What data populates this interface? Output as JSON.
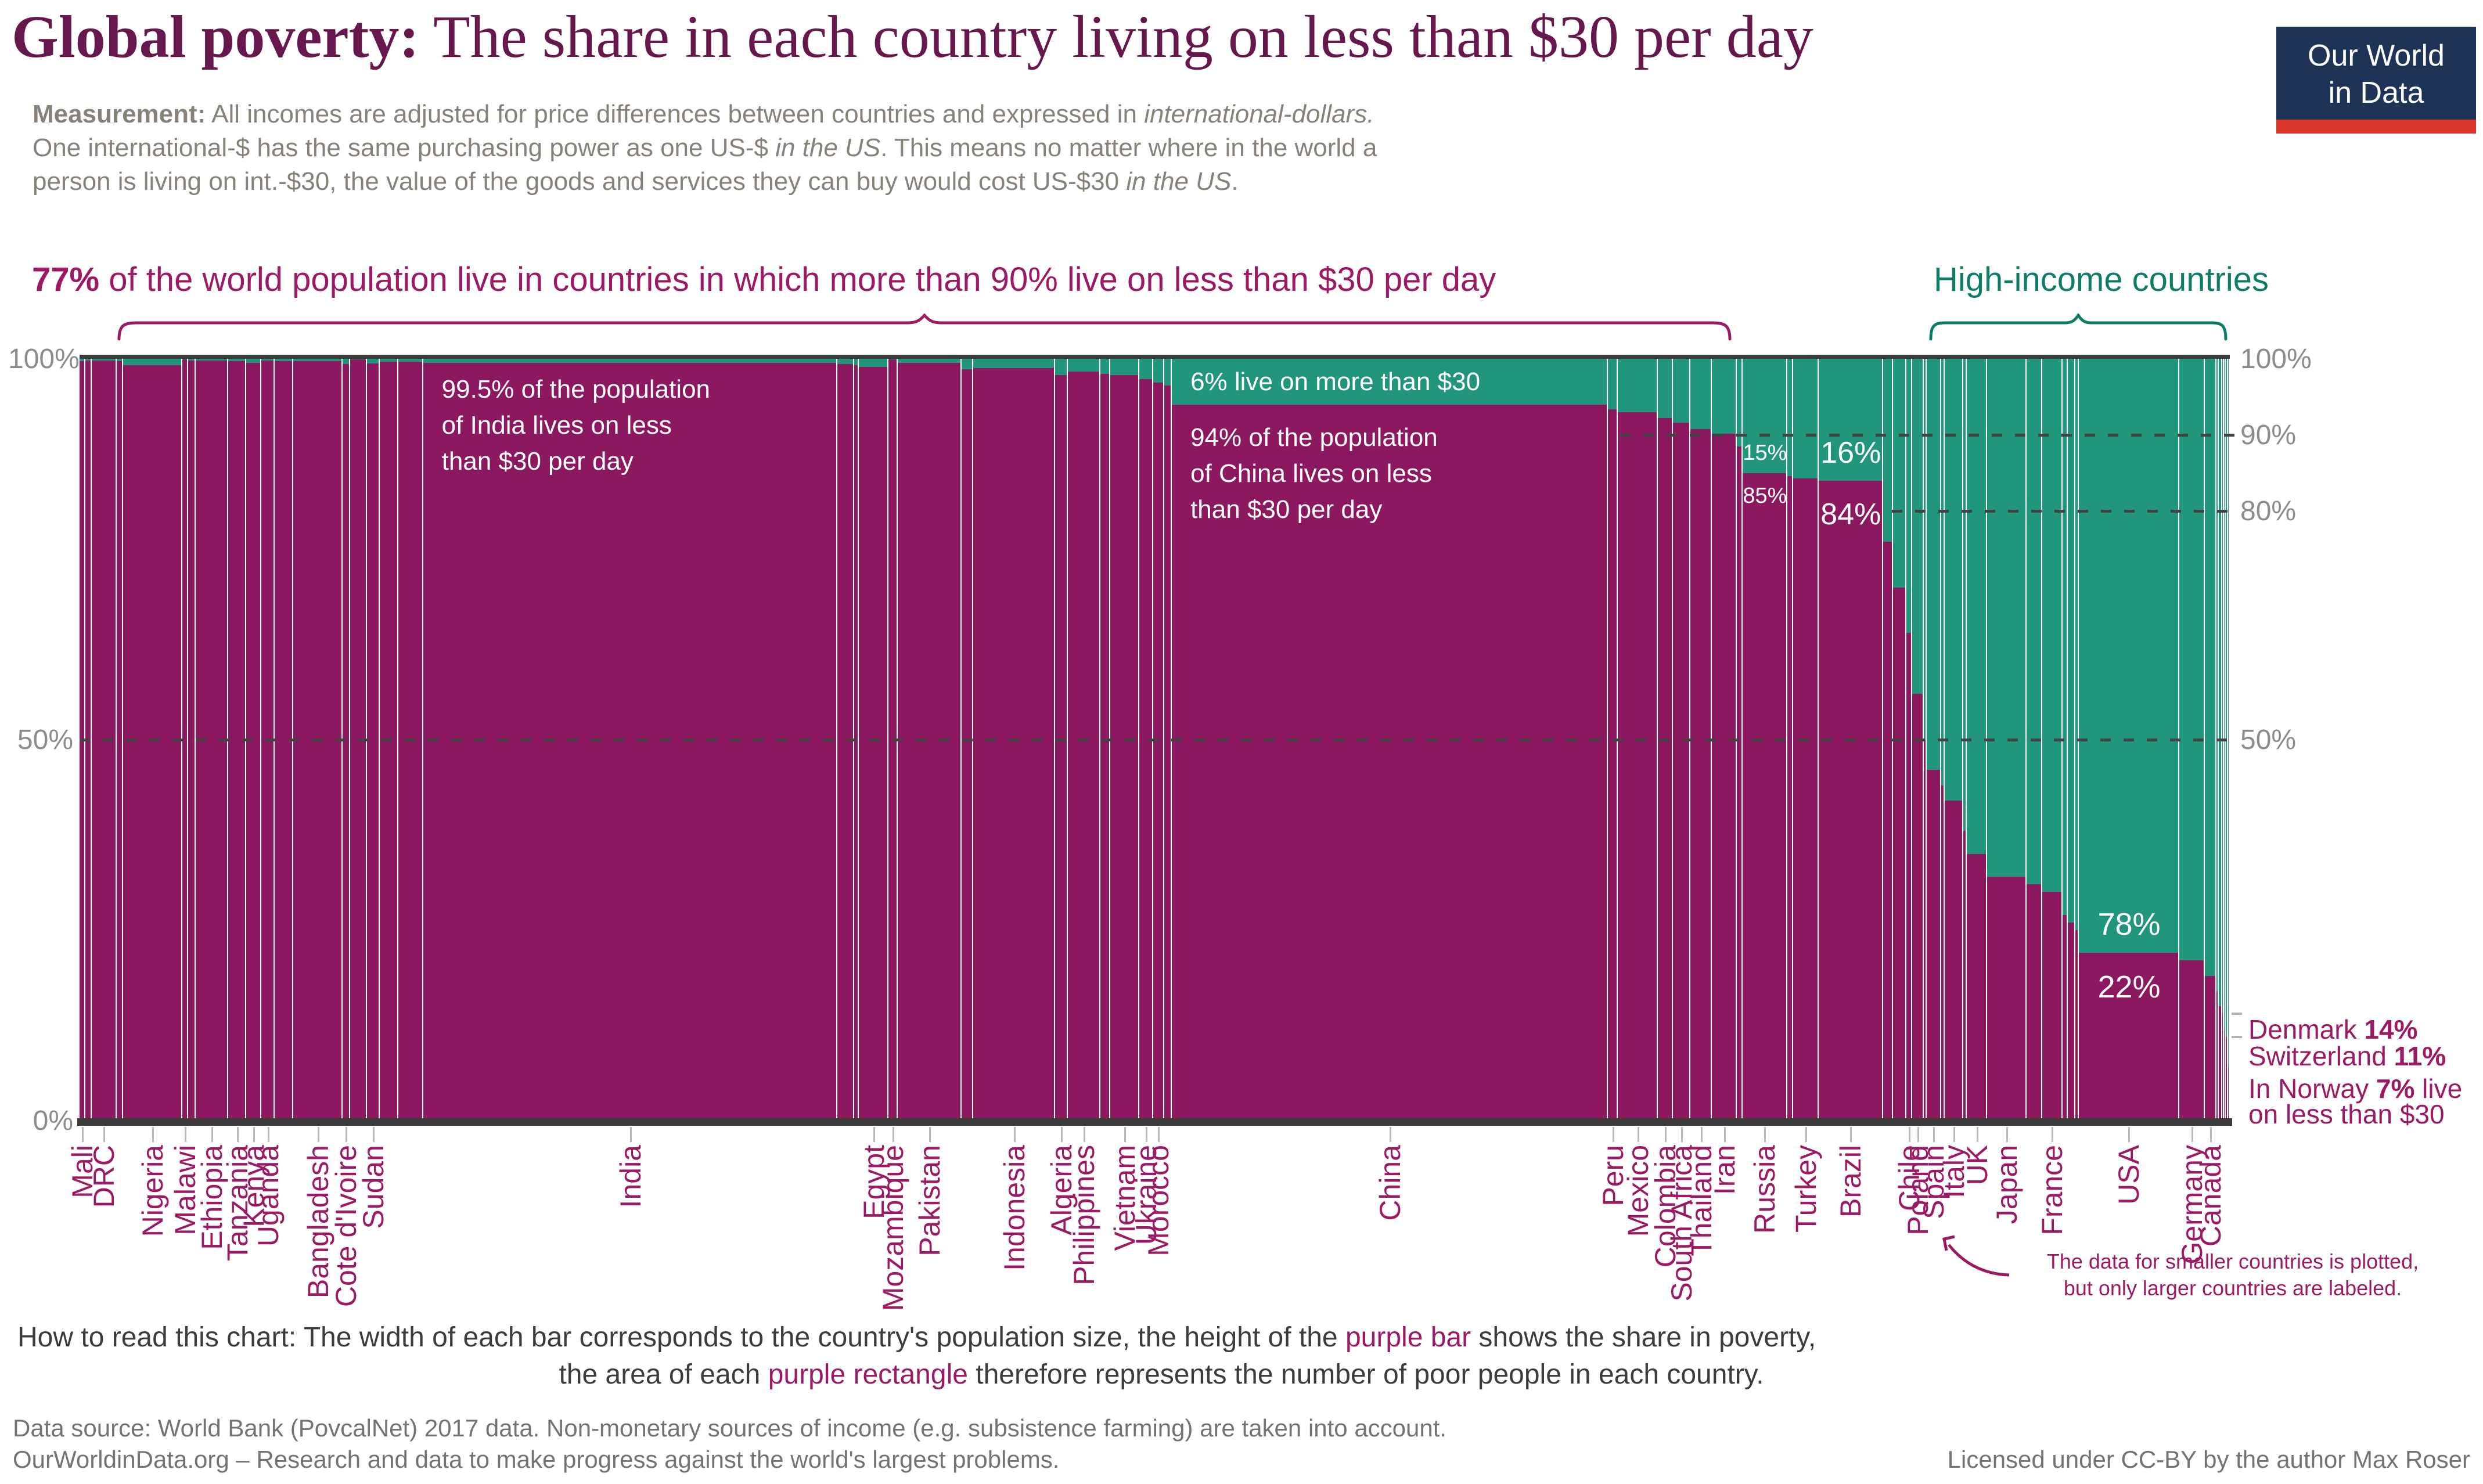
{
  "colors": {
    "purple": "#8c195f",
    "teal": "#21967c",
    "title_maroon": "#66184e",
    "accent_purple_text": "#9c1a63",
    "accent_teal_text": "#0e7c66",
    "axis_gray": "#8c8c8c",
    "measure_gray": "#87817a",
    "dark_text": "#3c3c3c",
    "footer_gray": "#737373",
    "logo_navy": "#1d3456",
    "logo_red": "#dc352c",
    "white": "#ffffff"
  },
  "header": {
    "title_lead": "Global poverty:",
    "title_rest": " The share in each country living on less than $30 per day",
    "logo_line1": "Our World",
    "logo_line2": "in Data"
  },
  "measurement": [
    {
      "t": "Measurement:",
      "b": true
    },
    {
      "t": " All incomes are adjusted for price differences between countries and expressed in "
    },
    {
      "t": "international-dollars.",
      "i": true
    },
    {
      "br": true
    },
    {
      "t": "One international-$ has the same purchasing power as one US-$ "
    },
    {
      "t": "in the US",
      "i": true
    },
    {
      "t": ". This means no matter where in the world a"
    },
    {
      "br": true
    },
    {
      "t": "person is living on int.-$30, the value of the goods and services they can buy would cost US-$30 "
    },
    {
      "t": "in the US",
      "i": true
    },
    {
      "t": "."
    }
  ],
  "callouts": {
    "left": [
      {
        "t": "77%",
        "b": true
      },
      {
        "t": " of the world population live in countries in which more than 90% live on less than $30 per day"
      }
    ],
    "right": "High-income countries"
  },
  "chart_data": {
    "type": "bar",
    "subtype": "marimekko",
    "note": "width of bar = population share, height of purple = % living on less than $30/day",
    "ylim": [
      0,
      100
    ],
    "yticks_left": [
      100,
      50,
      0
    ],
    "yticks_right": [
      100,
      90,
      80,
      50
    ],
    "gridlines": [
      {
        "v": 50,
        "x0": 137
      },
      {
        "v": 90,
        "x0": 2790
      },
      {
        "v": 80,
        "x0": 3258
      }
    ],
    "bars": [
      {
        "l": "Mali",
        "p": 19,
        "v": 99.7
      },
      {
        "l": "",
        "p": 20,
        "v": 99.8
      },
      {
        "l": "DRC",
        "p": 81,
        "v": 99.8
      },
      {
        "l": "",
        "p": 21,
        "v": 99.7
      },
      {
        "l": "Nigeria",
        "p": 191,
        "v": 99.2
      },
      {
        "l": "Malawi",
        "p": 18,
        "v": 99.9
      },
      {
        "l": "",
        "p": 26,
        "v": 99.8
      },
      {
        "l": "Ethiopia",
        "p": 105,
        "v": 99.8
      },
      {
        "l": "Tanzania",
        "p": 57,
        "v": 99.7
      },
      {
        "l": "Kenya",
        "p": 50,
        "v": 99.5
      },
      {
        "l": "Uganda",
        "p": 43,
        "v": 99.8
      },
      {
        "l": "",
        "p": 60,
        "v": 99.7
      },
      {
        "l": "Bangladesh",
        "p": 159,
        "v": 99.7
      },
      {
        "l": "Cote d'Ivoire",
        "p": 24,
        "v": 99.3
      },
      {
        "l": "",
        "p": 55,
        "v": 99.9
      },
      {
        "l": "Sudan",
        "p": 41,
        "v": 99.4
      },
      {
        "l": "",
        "p": 60,
        "v": 99.6
      },
      {
        "l": "",
        "p": 80,
        "v": 99.6
      },
      {
        "l": "India",
        "p": 1339,
        "v": 99.5
      },
      {
        "l": "",
        "p": 53,
        "v": 99.3
      },
      {
        "l": "",
        "p": 16,
        "v": 99.2
      },
      {
        "l": "Egypt",
        "p": 96,
        "v": 98.9
      },
      {
        "l": "Mozambique",
        "p": 29,
        "v": 99.9
      },
      {
        "l": "Pakistan",
        "p": 207,
        "v": 99.5
      },
      {
        "l": "",
        "p": 38,
        "v": 98.6
      },
      {
        "l": "Indonesia",
        "p": 264,
        "v": 98.8
      },
      {
        "l": "Algeria",
        "p": 41,
        "v": 97.9
      },
      {
        "l": "Philippines",
        "p": 105,
        "v": 98.3
      },
      {
        "l": "",
        "p": 32,
        "v": 98.0
      },
      {
        "l": "Vietnam",
        "p": 94,
        "v": 97.9
      },
      {
        "l": "Ukraine",
        "p": 44,
        "v": 97.3
      },
      {
        "l": "Morocco",
        "p": 36,
        "v": 96.9
      },
      {
        "l": "",
        "p": 25,
        "v": 96.5
      },
      {
        "l": "China",
        "p": 1409,
        "v": 94
      },
      {
        "l": "Peru",
        "p": 32,
        "v": 93.4
      },
      {
        "l": "Mexico",
        "p": 129,
        "v": 93.0
      },
      {
        "l": "Colombia",
        "p": 49,
        "v": 92.2
      },
      {
        "l": "South Africa",
        "p": 57,
        "v": 91.6
      },
      {
        "l": "Thailand",
        "p": 69,
        "v": 90.8
      },
      {
        "l": "Iran",
        "p": 81,
        "v": 90.2
      },
      {
        "l": "",
        "p": 18,
        "v": 88.5
      },
      {
        "l": "Russia",
        "p": 144,
        "v": 85
      },
      {
        "l": "",
        "p": 20,
        "v": 84.6
      },
      {
        "l": "Turkey",
        "p": 81,
        "v": 84.3
      },
      {
        "l": "Brazil",
        "p": 209,
        "v": 84
      },
      {
        "l": "",
        "p": 31,
        "v": 76
      },
      {
        "l": "",
        "p": 44,
        "v": 70
      },
      {
        "l": "Chile",
        "p": 18,
        "v": 64
      },
      {
        "l": "Poland",
        "p": 38,
        "v": 56
      },
      {
        "l": "",
        "p": 10,
        "v": 50
      },
      {
        "l": "Spain",
        "p": 46,
        "v": 46
      },
      {
        "l": "",
        "p": 11,
        "v": 44
      },
      {
        "l": "Italy",
        "p": 61,
        "v": 42
      },
      {
        "l": "",
        "p": 11,
        "v": 38
      },
      {
        "l": "UK",
        "p": 66,
        "v": 35
      },
      {
        "l": "Japan",
        "p": 127,
        "v": 32
      },
      {
        "l": "",
        "p": 51,
        "v": 31
      },
      {
        "l": "France",
        "p": 65,
        "v": 30
      },
      {
        "l": "",
        "p": 17,
        "v": 27
      },
      {
        "l": "",
        "p": 25,
        "v": 26
      },
      {
        "l": "",
        "p": 11,
        "v": 25
      },
      {
        "l": "USA",
        "p": 325,
        "v": 22
      },
      {
        "l": "Germany",
        "p": 82,
        "v": 21
      },
      {
        "l": "Canada",
        "p": 37,
        "v": 19
      },
      {
        "l": "",
        "p": 9,
        "v": 17
      },
      {
        "l": "",
        "p": 10,
        "v": 15
      },
      {
        "l": "Denmark",
        "p": 6,
        "v": 14,
        "h": 1
      },
      {
        "l": "",
        "p": 6,
        "v": 12
      },
      {
        "l": "Switzerland",
        "p": 8,
        "v": 11,
        "h": 1
      },
      {
        "l": "Norway",
        "p": 5,
        "v": 7,
        "h": 1
      }
    ],
    "pct_labels": [
      {
        "bar": "Russia",
        "above": "15%",
        "below": "85%",
        "size": 38
      },
      {
        "bar": "Brazil",
        "above": "16%",
        "below": "84%",
        "size": 52
      },
      {
        "bar": "USA",
        "above": "78%",
        "below": "22%",
        "size": 54
      }
    ],
    "india_note": {
      "bar": "India",
      "lines": [
        "99.5% of the population",
        "of India lives on less",
        "than $30 per day"
      ]
    },
    "china_note": {
      "bar": "China",
      "teal_line": "6% live on more than $30",
      "lines": [
        "94% of the population",
        "of China lives on less",
        "than $30 per day"
      ]
    },
    "right_notes": {
      "lines": [
        [
          {
            "t": "Denmark "
          },
          {
            "t": "14%",
            "b": true
          }
        ],
        [
          {
            "t": "Switzerland "
          },
          {
            "t": "11%",
            "b": true
          }
        ],
        [
          {
            "t": "In Norway "
          },
          {
            "t": "7%",
            "b": true
          },
          {
            "t": " live"
          }
        ],
        [
          {
            "t": "on less than $30"
          }
        ]
      ],
      "stubs": [
        14,
        11
      ]
    },
    "small_note": [
      "The data for smaller countries is plotted,",
      "but only larger countries are labeled."
    ]
  },
  "how_to_read": {
    "line1": [
      {
        "t": "How to read this chart:"
      },
      {
        "t": " The width of each bar corresponds to the country's population size, the height of the "
      },
      {
        "t": "purple bar",
        "c": "accent_purple_text"
      },
      {
        "t": " shows the share in poverty,"
      }
    ],
    "line2": [
      {
        "t": "the area of each "
      },
      {
        "t": "purple rectangle",
        "c": "accent_purple_text"
      },
      {
        "t": " therefore represents the number of poor people in each country."
      }
    ]
  },
  "footer": {
    "line1": "Data source: World Bank (PovcalNet) 2017 data. Non-monetary sources of income (e.g. subsistence farming) are taken into account.",
    "line2": "OurWorldinData.org – Research and data to make progress against the world's largest problems.",
    "license": "Licensed under CC-BY by the author Max Roser"
  }
}
